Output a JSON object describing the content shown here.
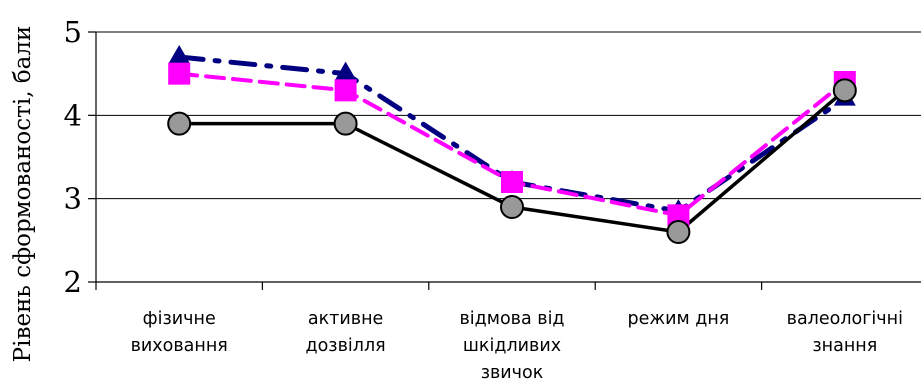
{
  "chart_data": {
    "type": "line",
    "ylabel": "Рівень сформованості, бали",
    "xlabel": "",
    "ylim": [
      2,
      5
    ],
    "yticks": [
      2,
      3,
      4,
      5
    ],
    "grid": true,
    "categories": [
      [
        "фізичне",
        "виховання"
      ],
      [
        "активне",
        "дозвілля"
      ],
      [
        "відмова від",
        "шкідливих",
        "звичок"
      ],
      [
        "режим дня"
      ],
      [
        "валеологічні",
        "знання"
      ]
    ],
    "series": [
      {
        "values": [
          4.7,
          4.5,
          3.2,
          2.85,
          4.2
        ],
        "color": "#000080",
        "line_style": "dash-dot",
        "marker": "triangle"
      },
      {
        "values": [
          4.5,
          4.3,
          3.2,
          2.8,
          4.4
        ],
        "color": "#ff00ff",
        "line_style": "dashed",
        "marker": "square"
      },
      {
        "values": [
          3.9,
          3.9,
          2.9,
          2.6,
          4.3
        ],
        "color": "#000000",
        "line_style": "solid",
        "marker": "circle",
        "marker_fill": "#999999"
      }
    ]
  }
}
